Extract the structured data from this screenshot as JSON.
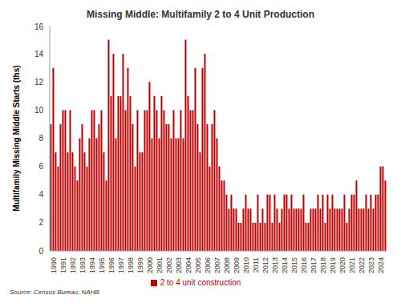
{
  "chart_data": {
    "type": "bar",
    "title": "Missing Middle: Multifamily 2 to 4 Unit Production",
    "y_label": "Multifamily Missing Middle Starts (ths)",
    "source": "Source: Census Bureau; NAHB",
    "categories": [
      "1990",
      null,
      null,
      null,
      "1991",
      null,
      null,
      null,
      "1992",
      null,
      null,
      null,
      "1993",
      null,
      null,
      null,
      "1994",
      null,
      null,
      null,
      "1995",
      null,
      null,
      null,
      "1996",
      null,
      null,
      null,
      "1997",
      null,
      null,
      null,
      "1998",
      null,
      null,
      null,
      "1999",
      null,
      null,
      null,
      "2000",
      null,
      null,
      null,
      "2001",
      null,
      null,
      null,
      "2002",
      null,
      null,
      null,
      "2003",
      null,
      null,
      null,
      "2004",
      null,
      null,
      null,
      "2005",
      null,
      null,
      null,
      "2006",
      null,
      null,
      null,
      "2007",
      null,
      null,
      null,
      "2008",
      null,
      null,
      null,
      "2009",
      null,
      null,
      null,
      "2010",
      null,
      null,
      null,
      "2011",
      null,
      null,
      null,
      "2012",
      null,
      null,
      null,
      "2013",
      null,
      null,
      null,
      "2014",
      null,
      null,
      null,
      "2015",
      null,
      null,
      null,
      "2016",
      null,
      null,
      null,
      "2017",
      null,
      null,
      null,
      "2018",
      null,
      null,
      null,
      "2019",
      null,
      null,
      null,
      "2020",
      null,
      null,
      null,
      "2021",
      null,
      null,
      null,
      "2022",
      null,
      null,
      null,
      "2023",
      null,
      null,
      null,
      "2024",
      null,
      null,
      null
    ],
    "series": [
      {
        "name": "2 to 4 unit construction",
        "color": "#c00000",
        "values": [
          9,
          13,
          7,
          6,
          9,
          10,
          10,
          7,
          10,
          7,
          6,
          5,
          8,
          9,
          7,
          6,
          8,
          10,
          10,
          8,
          9,
          10,
          7,
          5,
          15,
          11,
          14,
          8,
          11,
          11,
          14,
          10,
          13,
          11,
          9,
          6,
          10,
          7,
          7,
          10,
          10,
          12,
          8,
          11,
          10,
          8,
          11,
          10,
          9,
          9,
          8,
          10,
          8,
          8,
          10,
          8,
          15,
          11,
          10,
          10,
          13,
          9,
          7,
          13,
          14,
          9,
          6,
          9,
          10,
          8,
          6,
          5,
          5,
          4,
          3,
          4,
          3,
          3,
          2,
          2,
          3,
          4,
          3,
          3,
          2,
          2,
          4,
          2,
          3,
          2,
          4,
          4,
          2,
          4,
          3,
          2,
          3,
          4,
          4,
          3,
          4,
          3,
          3,
          3,
          3,
          4,
          2,
          2,
          3,
          3,
          3,
          4,
          3,
          4,
          2,
          4,
          3,
          4,
          3,
          3,
          3,
          3,
          4,
          2,
          3,
          4,
          4,
          5,
          3,
          3,
          3,
          4,
          3,
          4,
          3,
          4,
          4,
          6,
          6,
          5
        ]
      }
    ],
    "ylim": [
      0,
      16
    ],
    "yticks": [
      0,
      2,
      4,
      6,
      8,
      10,
      12,
      14,
      16
    ],
    "grid": false,
    "legend": "bottom"
  }
}
